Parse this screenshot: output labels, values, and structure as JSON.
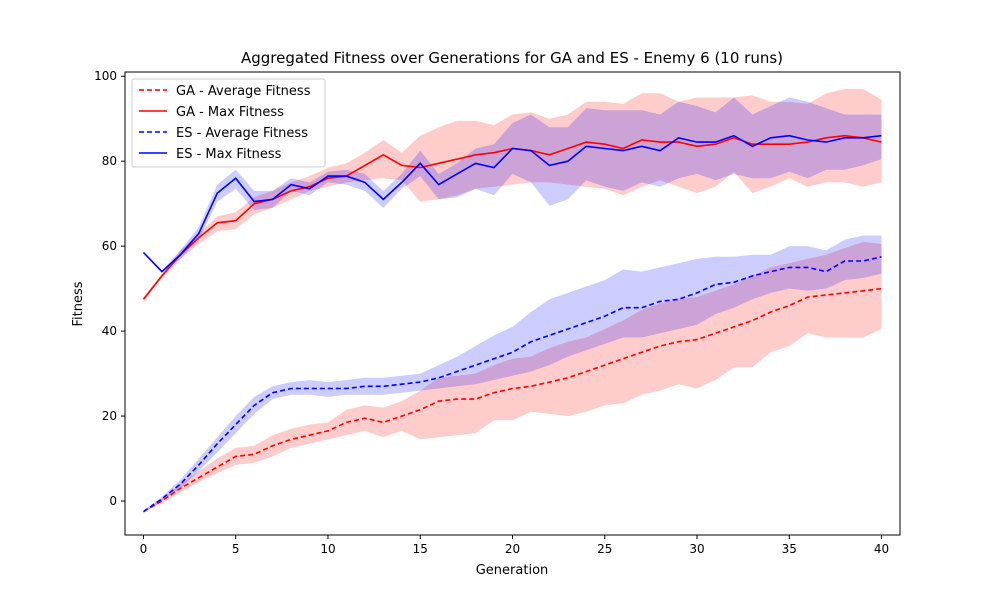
{
  "chart_data": {
    "type": "line",
    "title": "Aggregated Fitness over Generations for GA and ES - Enemy 6 (10 runs)",
    "xlabel": "Generation",
    "ylabel": "Fitness",
    "xlim": [
      -1,
      41
    ],
    "ylim": [
      -8,
      101
    ],
    "xticks": [
      0,
      5,
      10,
      15,
      20,
      25,
      30,
      35,
      40
    ],
    "yticks": [
      0,
      20,
      40,
      60,
      80,
      100
    ],
    "grid": false,
    "legend_position": "top-left",
    "x": [
      0,
      1,
      2,
      3,
      4,
      5,
      6,
      7,
      8,
      9,
      10,
      11,
      12,
      13,
      14,
      15,
      16,
      17,
      18,
      19,
      20,
      21,
      22,
      23,
      24,
      25,
      26,
      27,
      28,
      29,
      30,
      31,
      32,
      33,
      34,
      35,
      36,
      37,
      38,
      39,
      40
    ],
    "series": [
      {
        "name": "GA - Average Fitness",
        "color": "#ff0000",
        "linestyle": "dashed",
        "values": [
          -2.5,
          0,
          3,
          5.5,
          8,
          10.5,
          11,
          13,
          14.5,
          15.5,
          16.5,
          18.5,
          19.5,
          18.5,
          20,
          21.5,
          23.5,
          24,
          24,
          25.5,
          26.5,
          27,
          28,
          29,
          30.5,
          32,
          33.5,
          35,
          36.5,
          37.5,
          38,
          39.5,
          41,
          42.5,
          44.5,
          46,
          48,
          48.5,
          49,
          49.5,
          50
        ],
        "band_lower": [
          -2.7,
          -0.5,
          2,
          4.5,
          6.5,
          8.5,
          9,
          10.5,
          12.5,
          13.5,
          14.5,
          15.5,
          16.5,
          15,
          16.5,
          14.5,
          15,
          15.5,
          16,
          19,
          19,
          21,
          20.5,
          20,
          21,
          22.5,
          23,
          25,
          26,
          27.5,
          26.5,
          28.5,
          31.5,
          31.5,
          35,
          36.5,
          39.5,
          38.5,
          38.5,
          38.5,
          40.5
        ],
        "band_upper": [
          -2.3,
          0.5,
          4,
          7,
          10,
          12.5,
          13,
          15.5,
          17,
          18,
          18.5,
          21.5,
          22.5,
          22,
          23.5,
          26,
          29,
          29.5,
          30,
          32,
          33.5,
          34,
          36,
          37.5,
          38.5,
          40.5,
          42.5,
          45,
          46.5,
          47.5,
          48,
          49.5,
          51,
          53,
          55,
          56,
          57,
          58,
          59.5,
          61,
          60.5
        ]
      },
      {
        "name": "GA - Max Fitness",
        "color": "#ff0000",
        "linestyle": "solid",
        "values": [
          47.5,
          53,
          58,
          62,
          65.5,
          66,
          70,
          71,
          73,
          74,
          76,
          76.5,
          79,
          81.5,
          79,
          78.5,
          79.5,
          80.5,
          81.5,
          82,
          83,
          82.5,
          81.5,
          83,
          84.5,
          84,
          83,
          85,
          84.5,
          84.5,
          83.5,
          84,
          85.5,
          84,
          84,
          84,
          84.5,
          85.5,
          86,
          85.5,
          84.5
        ],
        "band_lower": [
          47,
          52.5,
          57,
          60.5,
          63.5,
          64,
          67.5,
          69,
          71,
          73,
          74,
          75,
          75.5,
          76,
          75.5,
          70.5,
          71,
          72,
          73.5,
          74,
          74.5,
          75,
          75,
          74.5,
          74,
          73.5,
          72,
          74,
          75.5,
          74,
          72.5,
          74,
          77.5,
          72.5,
          74,
          76,
          74,
          75,
          75,
          74,
          75
        ],
        "band_upper": [
          48,
          53.5,
          59,
          63,
          67,
          68,
          71.5,
          73,
          75,
          76.5,
          78.5,
          79.5,
          82,
          85,
          82,
          86,
          88,
          89.5,
          89.5,
          88.5,
          91,
          91.5,
          90,
          91,
          94,
          94,
          93.5,
          96,
          96,
          94,
          95,
          95,
          95,
          95.5,
          94,
          94,
          93.5,
          96,
          97,
          97,
          94.5
        ]
      },
      {
        "name": "ES - Average Fitness",
        "color": "#0000ff",
        "linestyle": "dashed",
        "values": [
          -2.5,
          0.5,
          4,
          8.5,
          13.5,
          18,
          22.5,
          25.5,
          26.5,
          26.5,
          26.5,
          26.5,
          27,
          27,
          27.5,
          28,
          29,
          30.5,
          32,
          33.5,
          35,
          37.5,
          39,
          40.5,
          42,
          43.5,
          45.5,
          45.5,
          47,
          47.5,
          49,
          51,
          51.5,
          53,
          54,
          55,
          55,
          54,
          56.5,
          56.5,
          57.5
        ],
        "band_lower": [
          -2.8,
          0,
          3,
          7,
          11.5,
          16,
          20.5,
          24,
          25,
          25,
          24.5,
          25,
          25,
          25,
          25.5,
          26,
          26.5,
          27,
          27.5,
          28.5,
          29.5,
          30.5,
          32,
          34,
          35.5,
          37,
          38.5,
          38.5,
          39.5,
          40.5,
          41.5,
          44,
          45.5,
          47.5,
          49,
          50,
          49.5,
          50,
          52,
          52.5,
          53.5
        ],
        "band_upper": [
          -2.2,
          1,
          5,
          10,
          15,
          20,
          24.5,
          27,
          28,
          28.5,
          28,
          28.5,
          29,
          29,
          29.5,
          30,
          32,
          34,
          36.5,
          39,
          41,
          44.5,
          47.5,
          49,
          50.5,
          52,
          54.5,
          54,
          55,
          56,
          57,
          57.5,
          57.5,
          58,
          58,
          60,
          60,
          59,
          61.5,
          62.5,
          62.5
        ]
      },
      {
        "name": "ES - Max Fitness",
        "color": "#0000ff",
        "linestyle": "solid",
        "values": [
          58.5,
          54,
          58,
          63,
          72.5,
          76,
          70.5,
          71,
          74.5,
          73.5,
          76.5,
          76.5,
          75,
          71,
          75,
          79.5,
          74.5,
          77,
          79.5,
          78.5,
          83,
          82.5,
          79,
          80,
          83.5,
          83,
          82.5,
          83.5,
          82.5,
          85.5,
          84.5,
          84.5,
          86,
          83.5,
          85.5,
          86,
          85,
          84.5,
          85.5,
          85.5,
          86
        ],
        "band_lower": [
          58.3,
          53.8,
          57,
          61.5,
          70.5,
          73.5,
          68.5,
          69,
          73,
          72,
          75,
          74.5,
          73,
          69,
          73.5,
          76.5,
          71,
          71.5,
          73.5,
          72,
          77,
          75,
          69.5,
          71,
          75.5,
          74,
          73,
          75,
          74,
          76,
          77,
          75.5,
          77,
          76,
          76,
          77.5,
          76,
          78,
          78,
          79,
          80.5
        ],
        "band_upper": [
          58.7,
          54.2,
          59,
          64.5,
          74.5,
          78,
          73,
          73,
          76,
          75,
          77.5,
          78,
          77,
          73,
          77,
          82.5,
          77,
          79.5,
          83,
          84,
          89,
          91,
          88,
          88,
          92.5,
          92,
          92,
          92,
          91,
          94,
          93,
          91.5,
          95,
          91,
          93,
          95,
          94,
          92.5,
          91,
          91,
          91
        ]
      }
    ]
  }
}
